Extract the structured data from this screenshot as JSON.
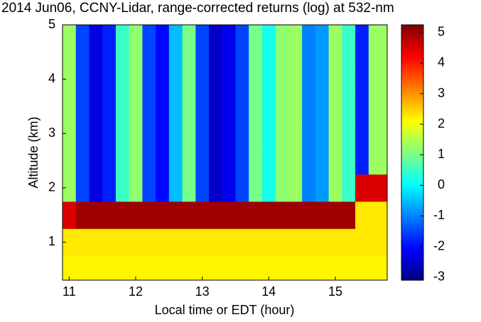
{
  "chart_data": {
    "type": "heatmap",
    "title": "2014 Jun06, CCNY-Lidar, range-corrected returns (log) at 532-nm",
    "x_label": "Local time or EDT (hour)",
    "y_label": "Altitude (km)",
    "colormap": "jet",
    "x": [
      11.0,
      11.2,
      11.4,
      11.6,
      11.8,
      12.0,
      12.2,
      12.4,
      12.6,
      12.8,
      13.0,
      13.2,
      13.4,
      13.6,
      13.8,
      14.0,
      14.2,
      14.4,
      14.6,
      14.8,
      15.0,
      15.2,
      15.4,
      15.6
    ],
    "y": [
      0.5,
      1.0,
      1.5,
      2.0,
      2.5,
      3.0,
      3.5,
      4.0,
      4.5,
      5.0
    ],
    "z": [
      [
        2.2,
        2.2,
        2.2,
        2.2,
        2.2,
        2.2,
        2.2,
        2.2,
        2.2,
        2.2,
        2.2,
        2.2,
        2.2,
        2.2,
        2.2,
        2.2,
        2.2,
        2.2,
        2.2,
        2.2,
        2.2,
        2.2,
        2.2,
        2.2
      ],
      [
        2.3,
        2.3,
        2.3,
        2.3,
        2.3,
        2.3,
        2.3,
        2.3,
        2.3,
        2.3,
        2.3,
        2.3,
        2.3,
        2.3,
        2.3,
        2.3,
        2.3,
        2.3,
        2.3,
        2.3,
        2.3,
        2.3,
        2.3,
        2.3
      ],
      [
        4.5,
        5,
        5,
        5,
        5,
        5,
        5,
        5,
        5,
        5,
        5,
        5,
        5,
        5,
        5,
        5,
        5,
        5,
        5,
        5,
        5,
        5,
        2.3,
        2.3
      ],
      [
        1.3,
        -1.5,
        -2.3,
        -1.8,
        0.5,
        1.2,
        -1.5,
        -2,
        -0.5,
        1,
        -1.5,
        -2.5,
        -2.2,
        -1.5,
        1,
        0.2,
        1.2,
        1.3,
        -1,
        -0.8,
        1.3,
        0.5,
        4.5,
        4.5
      ],
      [
        1.3,
        -1.5,
        -2.3,
        -1.8,
        0.5,
        1.2,
        -1.5,
        -2,
        -0.5,
        1,
        -1.5,
        -2.5,
        -2.2,
        -1.5,
        1,
        0.2,
        1.2,
        1.3,
        -1,
        -0.8,
        1.3,
        0.5,
        -1.8,
        1.3
      ],
      [
        1.3,
        -1.5,
        -2.3,
        -1.8,
        0.5,
        1.2,
        -1.5,
        -2,
        -0.5,
        1,
        -1.5,
        -2.5,
        -2.2,
        -1.5,
        1,
        0.2,
        1.2,
        1.3,
        -1,
        -0.8,
        1.3,
        0.5,
        -1.8,
        1.3
      ],
      [
        1.3,
        -1.5,
        -2.3,
        -1.8,
        0.5,
        1.2,
        -1.5,
        -2,
        -0.5,
        1,
        -1.5,
        -2.5,
        -2.2,
        -1.5,
        1,
        0.2,
        1.2,
        1.3,
        -1,
        -0.8,
        1.3,
        0.5,
        -1.8,
        1.3
      ],
      [
        1.3,
        -1.5,
        -2.3,
        -1.8,
        0.5,
        1.2,
        -1.5,
        -2,
        -0.5,
        1,
        -1.5,
        -2.5,
        -2.2,
        -1.5,
        1,
        0.2,
        1.2,
        1.3,
        -1,
        -0.8,
        1.3,
        0.5,
        -1.8,
        1.3
      ],
      [
        1.3,
        -1.5,
        -2.3,
        -1.8,
        0.5,
        1.2,
        -1.5,
        -2,
        -0.5,
        1,
        -1.5,
        -2.5,
        -2.2,
        -1.5,
        1,
        0.2,
        1.2,
        1.3,
        -1,
        -0.8,
        1.3,
        0.5,
        -1.8,
        1.3
      ],
      [
        1.3,
        -1.5,
        -2.3,
        -1.8,
        0.5,
        1.2,
        -1.5,
        -2,
        -0.5,
        1,
        -1.5,
        -2.5,
        -2.2,
        -1.5,
        1,
        0.2,
        1.2,
        1.3,
        -1,
        -0.8,
        1.3,
        0.5,
        -1.8,
        1.3
      ]
    ],
    "xlim": [
      10.9,
      15.78
    ],
    "xticks": [
      11,
      12,
      13,
      14,
      15
    ],
    "ylim": [
      0.3,
      5
    ],
    "yticks": [
      1,
      2,
      3,
      4,
      5
    ],
    "clim": [
      -3.1,
      5.25
    ],
    "cticks": [
      -3,
      -2,
      -1,
      0,
      1,
      2,
      3,
      4,
      5
    ]
  }
}
